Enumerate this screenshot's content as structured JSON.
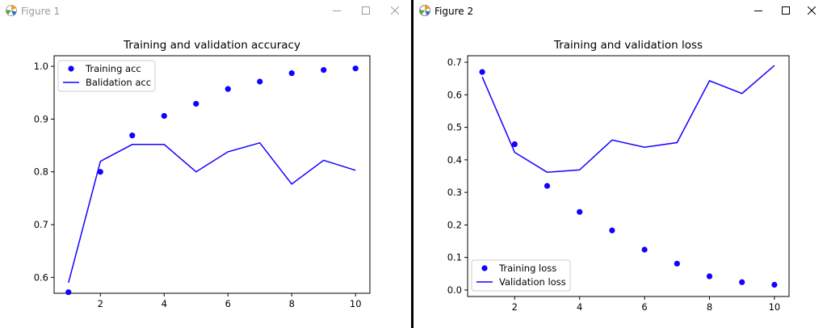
{
  "colors": {
    "series": "#1400ff",
    "inactive_title": "#9a9a9a"
  },
  "windows": [
    {
      "title": "Figure 1",
      "icon": "matplotlib-icon",
      "controls": [
        "minimize-icon",
        "maximize-icon",
        "close-icon"
      ]
    },
    {
      "title": "Figure 2",
      "icon": "matplotlib-icon",
      "controls": [
        "minimize-icon",
        "maximize-icon",
        "close-icon"
      ]
    }
  ],
  "chart_data": [
    {
      "type": "line",
      "title": "Training and validation accuracy",
      "xlabel": "",
      "ylabel": "",
      "xlim": [
        0.55,
        10.45
      ],
      "ylim": [
        0.57,
        1.02
      ],
      "xticks": [
        2,
        4,
        6,
        8,
        10
      ],
      "yticks": [
        0.6,
        0.7,
        0.8,
        0.9,
        1.0
      ],
      "ytick_labels": [
        "0.6",
        "0.7",
        "0.8",
        "0.9",
        "1.0"
      ],
      "legend_position": "top-left",
      "x": [
        1,
        2,
        3,
        4,
        5,
        6,
        7,
        8,
        9,
        10
      ],
      "series": [
        {
          "name": "Training acc",
          "style": "dots",
          "values": [
            0.572,
            0.8,
            0.869,
            0.906,
            0.929,
            0.957,
            0.971,
            0.987,
            0.993,
            0.996
          ]
        },
        {
          "name": "Balidation acc",
          "style": "line",
          "values": [
            0.59,
            0.82,
            0.852,
            0.852,
            0.8,
            0.838,
            0.855,
            0.777,
            0.822,
            0.803
          ]
        }
      ]
    },
    {
      "type": "line",
      "title": "Training and validation loss",
      "xlabel": "",
      "ylabel": "",
      "xlim": [
        0.55,
        10.45
      ],
      "ylim": [
        -0.02,
        0.72
      ],
      "xticks": [
        2,
        4,
        6,
        8,
        10
      ],
      "yticks": [
        0.0,
        0.1,
        0.2,
        0.3,
        0.4,
        0.5,
        0.6,
        0.7
      ],
      "ytick_labels": [
        "0.0",
        "0.1",
        "0.2",
        "0.3",
        "0.4",
        "0.5",
        "0.6",
        "0.7"
      ],
      "legend_position": "bottom-left",
      "x": [
        1,
        2,
        3,
        4,
        5,
        6,
        7,
        8,
        9,
        10
      ],
      "series": [
        {
          "name": "Training loss",
          "style": "dots",
          "values": [
            0.67,
            0.448,
            0.32,
            0.24,
            0.183,
            0.124,
            0.081,
            0.042,
            0.024,
            0.016
          ]
        },
        {
          "name": "Validation loss",
          "style": "line",
          "values": [
            0.655,
            0.423,
            0.362,
            0.369,
            0.461,
            0.439,
            0.453,
            0.643,
            0.604,
            0.69
          ]
        }
      ]
    }
  ]
}
